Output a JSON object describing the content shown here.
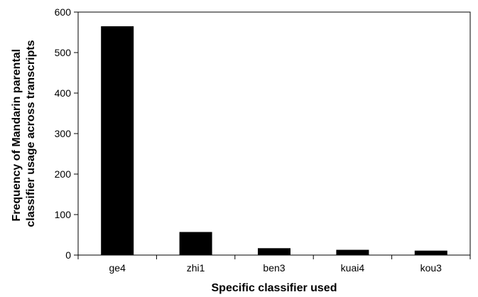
{
  "chart_data": {
    "type": "bar",
    "title": "",
    "xlabel": "Specific classifier used",
    "ylabel_lines": [
      "Frequency of Mandarin parental",
      "classifier usage across transcripts"
    ],
    "categories": [
      "ge4",
      "zhi1",
      "ben3",
      "kuai4",
      "kou3"
    ],
    "values": [
      565,
      57,
      17,
      13,
      11
    ],
    "ylim": [
      0,
      600
    ],
    "yticks": [
      0,
      100,
      200,
      300,
      400,
      500,
      600
    ],
    "grid": false,
    "legend": "none",
    "bar_color": "#000000"
  }
}
